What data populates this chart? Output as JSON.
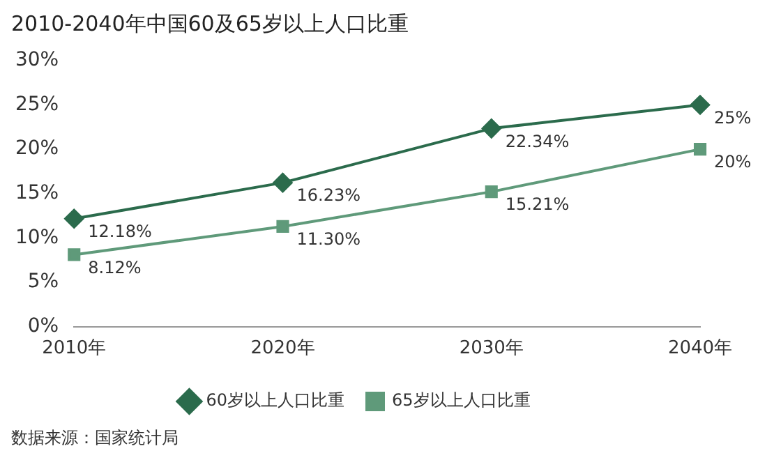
{
  "chart_data": {
    "type": "line",
    "title": "2010-2040年中国60及65岁以上人口比重",
    "categories": [
      "2010年",
      "2020年",
      "2030年",
      "2040年"
    ],
    "series": [
      {
        "name": "60岁以上人口比重",
        "color": "#2b6b4c",
        "marker": "diamond",
        "values": [
          12.18,
          16.23,
          22.34,
          25
        ],
        "value_labels": [
          "12.18%",
          "16.23%",
          "22.34%",
          "25%"
        ]
      },
      {
        "name": "65岁以上人口比重",
        "color": "#5f9a7a",
        "marker": "square",
        "values": [
          8.12,
          11.3,
          15.21,
          20
        ],
        "value_labels": [
          "8.12%",
          "11.30%",
          "15.21%",
          "20%"
        ]
      }
    ],
    "ylim": [
      0,
      30
    ],
    "yticks": [
      {
        "value": 0,
        "label": "0%"
      },
      {
        "value": 5,
        "label": "5%"
      },
      {
        "value": 10,
        "label": "10%"
      },
      {
        "value": 15,
        "label": "15%"
      },
      {
        "value": 20,
        "label": "20%"
      },
      {
        "value": 25,
        "label": "25%"
      },
      {
        "value": 30,
        "label": "30%"
      }
    ],
    "grid": false,
    "legend": "bottom",
    "line_style": "solid",
    "annotations": [
      "数据来源：国家统计局"
    ]
  }
}
